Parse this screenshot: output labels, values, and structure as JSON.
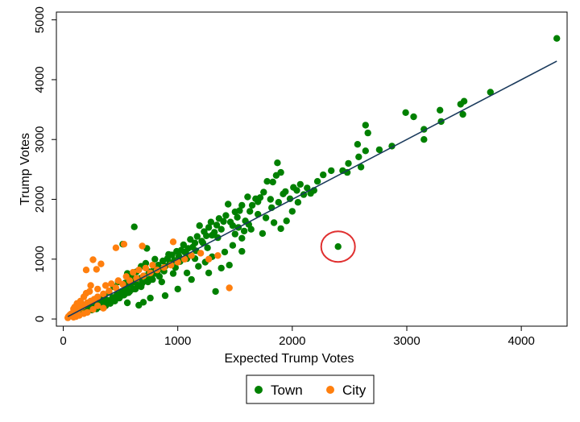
{
  "chart_data": {
    "type": "scatter",
    "xlabel": "Expected Trump Votes",
    "ylabel": "Trump Votes",
    "xlim": [
      -60,
      4400
    ],
    "ylim": [
      -120,
      5130
    ],
    "xticks": [
      0,
      1000,
      2000,
      3000,
      4000
    ],
    "yticks": [
      0,
      1000,
      2000,
      3000,
      4000,
      5000
    ],
    "grid": false,
    "legend": "bottom",
    "series": [
      {
        "name": "Town",
        "color": "#008000",
        "points": [
          [
            4310,
            4690
          ],
          [
            3730,
            3790
          ],
          [
            3500,
            3640
          ],
          [
            3470,
            3590
          ],
          [
            3490,
            3420
          ],
          [
            3290,
            3490
          ],
          [
            3300,
            3300
          ],
          [
            3150,
            3000
          ],
          [
            3060,
            3380
          ],
          [
            2990,
            3450
          ],
          [
            3150,
            3170
          ],
          [
            2870,
            2890
          ],
          [
            2760,
            2830
          ],
          [
            2640,
            3240
          ],
          [
            2660,
            3110
          ],
          [
            2640,
            2810
          ],
          [
            2570,
            2920
          ],
          [
            2580,
            2710
          ],
          [
            2600,
            2540
          ],
          [
            2490,
            2600
          ],
          [
            2440,
            2480
          ],
          [
            2480,
            2450
          ],
          [
            2340,
            2480
          ],
          [
            2270,
            2410
          ],
          [
            2220,
            2300
          ],
          [
            2160,
            2100
          ],
          [
            2130,
            2190
          ],
          [
            2070,
            2250
          ],
          [
            2040,
            2150
          ],
          [
            2010,
            2200
          ],
          [
            1980,
            2010
          ],
          [
            1940,
            2130
          ],
          [
            1920,
            2090
          ],
          [
            1900,
            2450
          ],
          [
            1870,
            2610
          ],
          [
            1860,
            2400
          ],
          [
            1830,
            2290
          ],
          [
            1810,
            2000
          ],
          [
            1780,
            2300
          ],
          [
            1750,
            2120
          ],
          [
            1720,
            2030
          ],
          [
            1700,
            1960
          ],
          [
            1680,
            2010
          ],
          [
            1650,
            1900
          ],
          [
            1630,
            1800
          ],
          [
            1610,
            2040
          ],
          [
            1590,
            1640
          ],
          [
            1560,
            1900
          ],
          [
            1540,
            1810
          ],
          [
            1520,
            1700
          ],
          [
            1500,
            1790
          ],
          [
            1480,
            1560
          ],
          [
            1460,
            1620
          ],
          [
            1440,
            1920
          ],
          [
            1420,
            1730
          ],
          [
            1400,
            1630
          ],
          [
            1380,
            1500
          ],
          [
            1360,
            1680
          ],
          [
            1340,
            1570
          ],
          [
            1320,
            1450
          ],
          [
            1300,
            1400
          ],
          [
            1290,
            1620
          ],
          [
            1270,
            1530
          ],
          [
            1250,
            1390
          ],
          [
            1230,
            1460
          ],
          [
            1210,
            1300
          ],
          [
            1190,
            1560
          ],
          [
            1170,
            1380
          ],
          [
            1150,
            1270
          ],
          [
            1130,
            1200
          ],
          [
            1110,
            1330
          ],
          [
            1090,
            1180
          ],
          [
            1070,
            1110
          ],
          [
            1050,
            1240
          ],
          [
            1030,
            1150
          ],
          [
            1010,
            1050
          ],
          [
            990,
            1130
          ],
          [
            970,
            980
          ],
          [
            950,
            1070
          ],
          [
            930,
            940
          ],
          [
            910,
            1010
          ],
          [
            890,
            880
          ],
          [
            870,
            970
          ],
          [
            850,
            840
          ],
          [
            830,
            900
          ],
          [
            810,
            760
          ],
          [
            790,
            820
          ],
          [
            770,
            700
          ],
          [
            750,
            790
          ],
          [
            730,
            650
          ],
          [
            710,
            720
          ],
          [
            690,
            600
          ],
          [
            670,
            680
          ],
          [
            650,
            560
          ],
          [
            630,
            620
          ],
          [
            610,
            500
          ],
          [
            590,
            570
          ],
          [
            570,
            440
          ],
          [
            550,
            520
          ],
          [
            530,
            400
          ],
          [
            510,
            460
          ],
          [
            490,
            350
          ],
          [
            470,
            410
          ],
          [
            450,
            300
          ],
          [
            430,
            360
          ],
          [
            410,
            260
          ],
          [
            390,
            310
          ],
          [
            370,
            220
          ],
          [
            350,
            270
          ],
          [
            330,
            200
          ],
          [
            310,
            230
          ],
          [
            290,
            170
          ],
          [
            270,
            200
          ],
          [
            250,
            150
          ],
          [
            230,
            170
          ],
          [
            210,
            130
          ],
          [
            190,
            150
          ],
          [
            170,
            110
          ],
          [
            150,
            120
          ],
          [
            130,
            90
          ],
          [
            110,
            100
          ],
          [
            90,
            70
          ],
          [
            70,
            60
          ],
          [
            2400,
            1210
          ],
          [
            620,
            1540
          ],
          [
            520,
            1250
          ],
          [
            730,
            1180
          ],
          [
            1500,
            1420
          ],
          [
            1640,
            1500
          ],
          [
            1740,
            1430
          ],
          [
            1900,
            1510
          ],
          [
            1950,
            1640
          ],
          [
            2000,
            1800
          ],
          [
            1330,
            460
          ],
          [
            1270,
            770
          ],
          [
            1120,
            660
          ],
          [
            1000,
            500
          ],
          [
            890,
            390
          ],
          [
            760,
            350
          ],
          [
            700,
            280
          ],
          [
            660,
            230
          ],
          [
            560,
            270
          ],
          [
            1380,
            850
          ],
          [
            1450,
            900
          ],
          [
            1560,
            1130
          ],
          [
            1180,
            880
          ],
          [
            1080,
            770
          ],
          [
            960,
            760
          ],
          [
            860,
            620
          ],
          [
            1700,
            1750
          ],
          [
            1770,
            1690
          ],
          [
            1840,
            1610
          ],
          [
            1560,
            1350
          ],
          [
            1480,
            1230
          ],
          [
            1410,
            1120
          ],
          [
            1300,
            1040
          ],
          [
            1240,
            950
          ],
          [
            1150,
            1010
          ],
          [
            1060,
            1120
          ],
          [
            980,
            860
          ],
          [
            920,
            1080
          ],
          [
            840,
            710
          ],
          [
            800,
            1000
          ],
          [
            720,
            930
          ],
          [
            680,
            880
          ],
          [
            640,
            790
          ],
          [
            600,
            690
          ],
          [
            560,
            760
          ],
          [
            540,
            600
          ],
          [
            480,
            620
          ],
          [
            440,
            540
          ],
          [
            400,
            460
          ],
          [
            360,
            390
          ],
          [
            340,
            340
          ],
          [
            300,
            290
          ],
          [
            270,
            260
          ],
          [
            240,
            230
          ],
          [
            2050,
            1950
          ],
          [
            2100,
            2080
          ],
          [
            2190,
            2150
          ],
          [
            1820,
            1860
          ],
          [
            1880,
            1950
          ],
          [
            1620,
            1580
          ],
          [
            1580,
            1470
          ],
          [
            1530,
            1530
          ],
          [
            1350,
            1360
          ],
          [
            1260,
            1190
          ],
          [
            1160,
            1140
          ],
          [
            1220,
            1270
          ],
          [
            1080,
            1010
          ],
          [
            1020,
            960
          ],
          [
            940,
            920
          ],
          [
            880,
            800
          ],
          [
            820,
            780
          ],
          [
            780,
            660
          ],
          [
            740,
            620
          ],
          [
            680,
            540
          ],
          [
            630,
            500
          ],
          [
            580,
            460
          ],
          [
            540,
            420
          ],
          [
            500,
            380
          ],
          [
            460,
            340
          ],
          [
            420,
            300
          ],
          [
            380,
            280
          ],
          [
            320,
            250
          ]
        ]
      },
      {
        "name": "City",
        "color": "#ff7f0e",
        "points": [
          [
            1450,
            520
          ],
          [
            1350,
            1060
          ],
          [
            1270,
            1000
          ],
          [
            960,
            1290
          ],
          [
            1200,
            1100
          ],
          [
            1120,
            1060
          ],
          [
            1060,
            1000
          ],
          [
            1000,
            950
          ],
          [
            940,
            900
          ],
          [
            880,
            860
          ],
          [
            820,
            820
          ],
          [
            760,
            770
          ],
          [
            700,
            720
          ],
          [
            640,
            680
          ],
          [
            580,
            640
          ],
          [
            520,
            580
          ],
          [
            460,
            520
          ],
          [
            400,
            470
          ],
          [
            350,
            420
          ],
          [
            300,
            370
          ],
          [
            270,
            330
          ],
          [
            240,
            300
          ],
          [
            210,
            270
          ],
          [
            190,
            240
          ],
          [
            170,
            210
          ],
          [
            150,
            190
          ],
          [
            130,
            160
          ],
          [
            110,
            140
          ],
          [
            95,
            120
          ],
          [
            80,
            100
          ],
          [
            65,
            80
          ],
          [
            55,
            60
          ],
          [
            45,
            40
          ],
          [
            40,
            20
          ],
          [
            200,
            820
          ],
          [
            290,
            830
          ],
          [
            330,
            920
          ],
          [
            260,
            990
          ],
          [
            460,
            1190
          ],
          [
            530,
            1250
          ],
          [
            690,
            1220
          ],
          [
            240,
            560
          ],
          [
            200,
            430
          ],
          [
            180,
            370
          ],
          [
            230,
            460
          ],
          [
            300,
            500
          ],
          [
            370,
            560
          ],
          [
            420,
            590
          ],
          [
            480,
            640
          ],
          [
            550,
            710
          ],
          [
            610,
            780
          ],
          [
            660,
            820
          ],
          [
            720,
            850
          ],
          [
            780,
            900
          ],
          [
            150,
            300
          ],
          [
            120,
            260
          ],
          [
            100,
            200
          ],
          [
            90,
            170
          ],
          [
            160,
            250
          ],
          [
            140,
            220
          ],
          [
            300,
            220
          ],
          [
            350,
            180
          ],
          [
            260,
            160
          ],
          [
            210,
            110
          ],
          [
            180,
            90
          ],
          [
            140,
            60
          ],
          [
            110,
            40
          ],
          [
            90,
            30
          ]
        ]
      }
    ],
    "fit_line": {
      "from": [
        40,
        40
      ],
      "to": [
        4310,
        4310
      ],
      "color": "#1a3a5c"
    },
    "annotation": {
      "type": "circle",
      "color": "#e03030",
      "at": [
        2400,
        1210
      ]
    }
  }
}
